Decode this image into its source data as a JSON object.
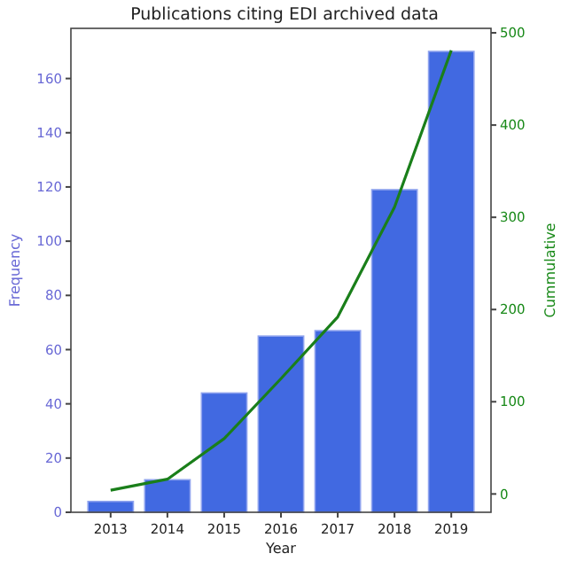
{
  "chart_data": {
    "type": "bar",
    "title": "Publications citing EDI archived data",
    "xlabel": "Year",
    "ylabel": "Frequency",
    "y2label": "Cummulative",
    "categories": [
      "2013",
      "2014",
      "2015",
      "2016",
      "2017",
      "2018",
      "2019"
    ],
    "series": [
      {
        "color": "#4169e1",
        "values": [
          4,
          12,
          44,
          65,
          67,
          119,
          170
        ]
      },
      {
        "type": "line",
        "axis": "y2",
        "color": "#1a7f1a",
        "values": [
          4,
          16,
          60,
          125,
          192,
          311,
          481
        ]
      }
    ],
    "ylim": [
      0,
      178.5
    ],
    "yticks": [
      0,
      20,
      40,
      60,
      80,
      100,
      120,
      140,
      160
    ],
    "y2lim": [
      -19.85,
      504.85
    ],
    "y2ticks": [
      0,
      100,
      200,
      300,
      400,
      500
    ],
    "grid": false,
    "marker": "none",
    "line_style": "solid"
  }
}
